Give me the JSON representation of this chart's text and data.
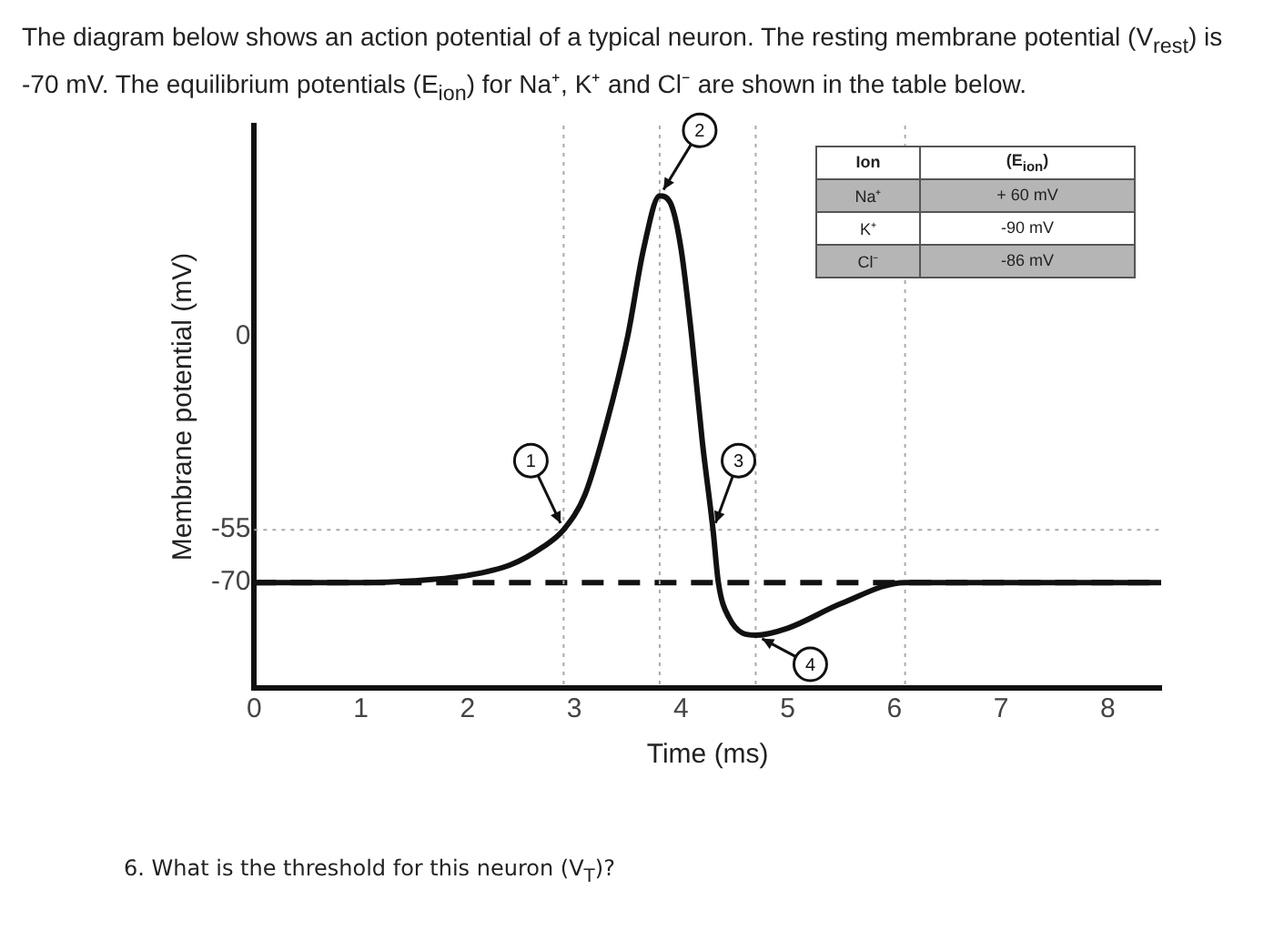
{
  "chart_data": {
    "type": "line",
    "title": "The diagram below shows an action potential of a typical neuron.  The resting membrane potential (V$_{rest}$) is -70 mV.  The equilibrium potentials (E$_{ion}$) for Na⁺, K⁺ and Cl⁻ are shown in the table below.",
    "xlabel": "Time (ms)",
    "ylabel": "Membrane potential (mV)",
    "x": [
      0,
      1,
      1.5,
      2,
      2.4,
      2.7,
      2.9,
      3.1,
      3.3,
      3.5,
      3.65,
      3.8,
      3.9,
      4.0,
      4.1,
      4.2,
      4.3,
      4.35,
      4.45,
      4.7,
      5.0,
      5.5,
      6.1,
      7,
      8.5
    ],
    "series": [
      {
        "color": "#111111",
        "values": [
          -70,
          -70,
          -69.5,
          -68,
          -65,
          -60,
          -55,
          -45,
          -25,
          0,
          25,
          40,
          38,
          25,
          0,
          -30,
          -55,
          -70,
          -80,
          -85,
          -83,
          -76,
          -70,
          -70,
          -70
        ]
      }
    ],
    "xlim": [
      0,
      8.5
    ],
    "xticks": [
      0,
      1,
      2,
      3,
      4,
      5,
      6,
      7,
      8
    ],
    "ylim": [
      -100,
      60
    ],
    "yticks": [
      -70,
      -55,
      0
    ],
    "grid": false,
    "legend": false,
    "marker": "none",
    "line_style": "solid",
    "ref_lines": [
      {
        "axis": "y",
        "value": -70,
        "color": "#111111",
        "line_style": "dashed"
      },
      {
        "axis": "y",
        "value": -55,
        "color": "#aaaaaa",
        "line_style": "dotted"
      },
      {
        "axis": "x",
        "value": 2.9,
        "color": "#aaaaaa",
        "line_style": "dotted"
      },
      {
        "axis": "x",
        "value": 3.8,
        "color": "#aaaaaa",
        "line_style": "dotted"
      },
      {
        "axis": "x",
        "value": 4.7,
        "color": "#aaaaaa",
        "line_style": "dotted"
      },
      {
        "axis": "x",
        "value": 6.1,
        "color": "#aaaaaa",
        "line_style": "dotted"
      }
    ],
    "annotations": [
      {
        "text": "1",
        "x": 2.9,
        "y": -55
      },
      {
        "text": "2",
        "x": 3.8,
        "y": 40
      },
      {
        "text": "3",
        "x": 4.3,
        "y": -55
      },
      {
        "text": "4",
        "x": 4.7,
        "y": -85
      },
      "Ion",
      "(E$_{ion}$)",
      "Na⁺",
      "+ 60 mV",
      "K⁺",
      "-90 mV",
      "Cl⁻",
      "-86 mV",
      "6. What is the threshold for this neuron (V$_{T}$)?"
    ]
  }
}
